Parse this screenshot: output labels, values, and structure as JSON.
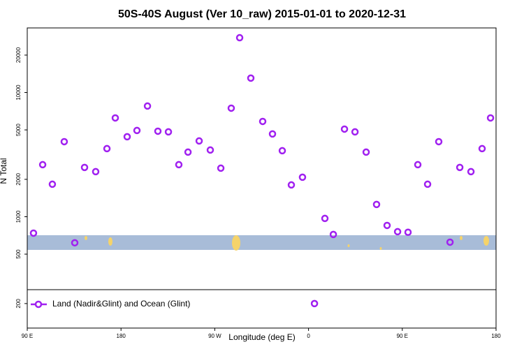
{
  "chart_data": {
    "type": "scatter",
    "title": "50S-40S August (Ver 10_raw)   2015-01-01 to 2020-12-31",
    "x_label": "Longitude (deg E)",
    "y_label": "N Total",
    "log_y": true,
    "legend": "bottomleft",
    "xlim": [
      90,
      540
    ],
    "xticks": [
      {
        "value": 90,
        "label": "90 E"
      },
      180,
      {
        "value": 270,
        "label": "90 W"
      },
      {
        "value": 360,
        "label": "0"
      },
      {
        "value": 450,
        "label": "90 E"
      },
      {
        "value": 540,
        "label": "180"
      }
    ],
    "ylim": [
      127,
      33100
    ],
    "yticks": [
      200,
      500,
      1000,
      2000,
      5000,
      10000,
      20000
    ],
    "series": [
      {
        "name": "Land (Nadir&Glint) and Ocean (Glint)",
        "color": "#a020f0",
        "x": [
          96,
          104.8,
          114.1,
          125.5,
          135.6,
          145,
          155.7,
          166.5,
          174.5,
          185.9,
          195.3,
          205.4,
          215.4,
          225.5,
          235.5,
          244.3,
          255,
          265.7,
          275.8,
          285.8,
          293.9,
          304.6,
          316,
          325.4,
          334.8,
          343.5,
          354.2,
          365.7,
          375.7,
          383.8,
          394.5,
          404.6,
          415.3,
          425.3,
          435.4,
          445.5,
          455.5,
          464.9,
          474.3,
          485,
          495.8,
          505.2,
          515.9,
          526.6,
          534.7
        ],
        "values": [
          738,
          2625,
          1827,
          4020,
          617,
          2494,
          2306,
          3534,
          6241,
          4405,
          4946,
          7780,
          4880,
          4820,
          2625,
          3313,
          4074,
          3444,
          2460,
          7480,
          27600,
          13060,
          5850,
          4640,
          3400,
          1803,
          2080,
          200,
          969,
          720,
          5075,
          4820,
          3313,
          1256,
          851,
          758,
          750,
          2625,
          1827,
          4020,
          624,
          2494,
          2306,
          3534,
          6241
        ]
      }
    ]
  }
}
